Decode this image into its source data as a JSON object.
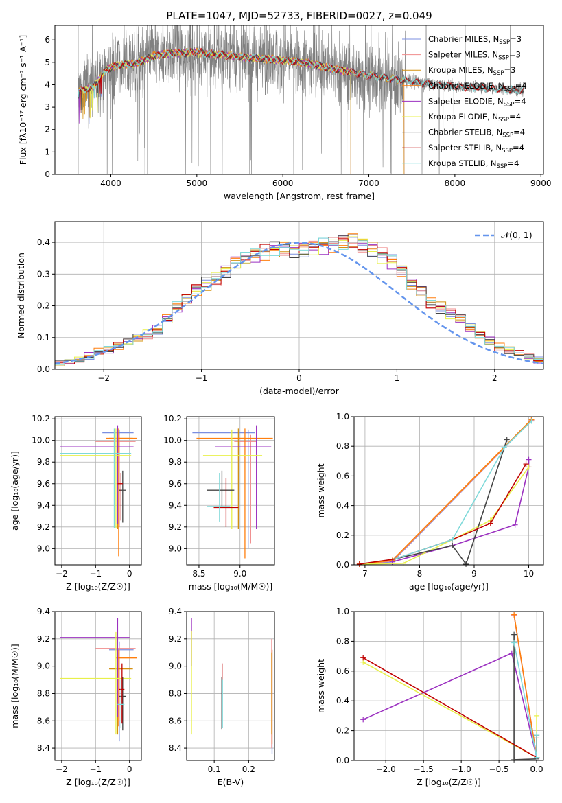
{
  "title": "PLATE=1047, MJD=52733, FIBERID=0027, z=0.049",
  "colors": {
    "chabrier_miles": "#7b8fe0",
    "salpeter_miles": "#f08c8c",
    "kroupa_miles": "#d4900e",
    "chabrier_elodie": "#ff7f0e",
    "salpeter_elodie": "#9b30c0",
    "kroupa_elodie": "#e8f04a",
    "chabrier_stelib": "#444444",
    "salpeter_stelib": "#c00000",
    "kroupa_stelib": "#7ed9d9",
    "grid": "#b0b0b0",
    "normal_curve": "#6495ed",
    "data_gray": "#808080"
  },
  "chart_data": [
    {
      "type": "line",
      "id": "spectrum",
      "xlabel": "wavelength [Angstrom, rest frame]",
      "ylabel": "Flux [fλ10⁻¹⁷ erg cm⁻² s⁻¹ A⁻¹]",
      "xlim": [
        3350,
        9030
      ],
      "ylim": [
        0,
        6.65
      ],
      "xticks": [
        "4000",
        "5000",
        "6000",
        "7000",
        "8000",
        "9000"
      ],
      "yticks": [
        "0",
        "1",
        "2",
        "3",
        "4",
        "5",
        "6"
      ],
      "legend_position": "right",
      "legend": [
        "Chabrier MILES, N_SSP=3",
        "Salpeter MILES, N_SSP=3",
        "Kroupa MILES, N_SSP=3",
        "Chabrier ELODIE, N_SSP=4",
        "Salpeter ELODIE, N_SSP=4",
        "Kroupa ELODIE, N_SSP=4",
        "Chabrier STELIB, N_SSP=4",
        "Salpeter STELIB, N_SSP=4",
        "Kroupa STELIB, N_SSP=4"
      ],
      "continuum": [
        [
          3620,
          3.7
        ],
        [
          3800,
          3.9
        ],
        [
          3950,
          4.7
        ],
        [
          4100,
          4.9
        ],
        [
          4300,
          4.95
        ],
        [
          4500,
          5.3
        ],
        [
          4700,
          5.4
        ],
        [
          5000,
          5.45
        ],
        [
          5200,
          5.35
        ],
        [
          5500,
          5.25
        ],
        [
          5800,
          5.15
        ],
        [
          6000,
          5.1
        ],
        [
          6300,
          4.95
        ],
        [
          6600,
          4.7
        ],
        [
          6900,
          4.5
        ],
        [
          7200,
          4.3
        ],
        [
          7500,
          4.15
        ],
        [
          7800,
          4.0
        ],
        [
          8100,
          3.9
        ],
        [
          8400,
          3.85
        ],
        [
          8700,
          3.75
        ],
        [
          8800,
          3.75
        ]
      ],
      "data_start": 3620,
      "data_end": 8800,
      "model_cutoffs": {
        "miles": 7410,
        "elodie": 6790,
        "stelib": 8800
      }
    },
    {
      "type": "histogram",
      "id": "residuals",
      "xlabel": "(data-model)/error",
      "ylabel": "Normed distribution",
      "xlim": [
        -2.5,
        2.5
      ],
      "ylim": [
        0,
        0.465
      ],
      "xticks": [
        "−2",
        "−1",
        "0",
        "1",
        "2"
      ],
      "yticks": [
        "0.0",
        "0.1",
        "0.2",
        "0.3",
        "0.4"
      ],
      "bin_edges_start": -2.5,
      "bin_width": 0.1,
      "base_values": [
        0.018,
        0.022,
        0.03,
        0.042,
        0.055,
        0.06,
        0.072,
        0.085,
        0.1,
        0.11,
        0.125,
        0.16,
        0.195,
        0.22,
        0.25,
        0.27,
        0.285,
        0.31,
        0.34,
        0.35,
        0.36,
        0.37,
        0.38,
        0.385,
        0.375,
        0.38,
        0.385,
        0.39,
        0.395,
        0.405,
        0.41,
        0.395,
        0.38,
        0.36,
        0.34,
        0.31,
        0.27,
        0.25,
        0.21,
        0.195,
        0.175,
        0.16,
        0.13,
        0.11,
        0.09,
        0.07,
        0.06,
        0.05,
        0.038,
        0.028
      ],
      "legend": [
        "𝒩(0, 1)"
      ],
      "legend_position": "top-right"
    },
    {
      "type": "errorbar",
      "id": "age_vs_Z",
      "xlabel": "Z [log₁₀(Z/Z☉)]",
      "ylabel": "age  [log₁₀(age/yr)]",
      "xlim": [
        -2.2,
        0.35
      ],
      "ylim": [
        8.85,
        10.22
      ],
      "xticks": [
        "−2",
        "−1",
        "0"
      ],
      "yticks": [
        "9.0",
        "9.2",
        "9.4",
        "9.6",
        "9.8",
        "10.0",
        "10.2"
      ],
      "points": [
        {
          "x": -0.3,
          "y": 10.07,
          "xlo": -0.8,
          "xhi": 0.12,
          "ylo": 9.22,
          "yhi": 10.1
        },
        {
          "x": -0.3,
          "y": 9.99,
          "xlo": -1.0,
          "xhi": 0.18,
          "ylo": 9.2,
          "yhi": 10.05
        },
        {
          "x": -0.35,
          "y": 10.02,
          "xlo": -0.6,
          "xhi": 0.1,
          "ylo": 9.18,
          "yhi": 10.1
        },
        {
          "x": -0.32,
          "y": 10.02,
          "xlo": -0.7,
          "xhi": 0.22,
          "ylo": 8.93,
          "yhi": 10.11
        },
        {
          "x": -0.35,
          "y": 9.94,
          "xlo": -2.05,
          "xhi": 0.12,
          "ylo": 9.23,
          "yhi": 10.14
        },
        {
          "x": -0.4,
          "y": 9.86,
          "xlo": -2.05,
          "xhi": 0.05,
          "ylo": 9.19,
          "yhi": 10.11
        },
        {
          "x": -0.2,
          "y": 9.54,
          "xlo": -0.3,
          "xhi": -0.1,
          "ylo": 9.24,
          "yhi": 9.72
        },
        {
          "x": -0.25,
          "y": 9.6,
          "xlo": -0.35,
          "xhi": -0.2,
          "ylo": 9.26,
          "yhi": 9.7
        },
        {
          "x": -0.45,
          "y": 9.88,
          "xlo": -2.05,
          "xhi": 0.05,
          "ylo": 9.19,
          "yhi": 10.11
        }
      ]
    },
    {
      "type": "errorbar",
      "id": "age_vs_mass",
      "xlabel": "mass [log₁₀(M/M☉)]",
      "ylabel": "",
      "xlim": [
        8.35,
        9.42
      ],
      "ylim": [
        8.85,
        10.22
      ],
      "xticks": [
        "8.5",
        "9.0"
      ],
      "yticks": [
        "9.0",
        "9.2",
        "9.4",
        "9.6",
        "9.8",
        "10.0",
        "10.2"
      ],
      "points": [
        {
          "x": 9.1,
          "y": 10.07,
          "xlo": 8.42,
          "xhi": 9.18,
          "ylo": 9.0,
          "yhi": 10.1
        },
        {
          "x": 9.13,
          "y": 9.99,
          "xlo": 8.93,
          "xhi": 9.2,
          "ylo": 9.05,
          "yhi": 10.05
        },
        {
          "x": 8.98,
          "y": 10.02,
          "xlo": 8.92,
          "xhi": 9.05,
          "ylo": 9.18,
          "yhi": 10.11
        },
        {
          "x": 9.06,
          "y": 10.02,
          "xlo": 8.47,
          "xhi": 9.4,
          "ylo": 8.91,
          "yhi": 10.11
        },
        {
          "x": 9.2,
          "y": 9.94,
          "xlo": 8.7,
          "xhi": 9.38,
          "ylo": 9.18,
          "yhi": 10.14
        },
        {
          "x": 8.9,
          "y": 9.86,
          "xlo": 8.55,
          "xhi": 9.27,
          "ylo": 9.18,
          "yhi": 10.1
        },
        {
          "x": 8.78,
          "y": 9.54,
          "xlo": 8.6,
          "xhi": 8.93,
          "ylo": 9.38,
          "yhi": 9.72
        },
        {
          "x": 8.83,
          "y": 9.38,
          "xlo": 8.68,
          "xhi": 8.98,
          "ylo": 9.2,
          "yhi": 9.65
        },
        {
          "x": 8.75,
          "y": 9.39,
          "xlo": 8.6,
          "xhi": 8.88,
          "ylo": 9.25,
          "yhi": 9.7
        }
      ]
    },
    {
      "type": "line",
      "id": "weight_vs_age",
      "xlabel": "age  [log₁₀(age/yr)]",
      "ylabel": "mass weight",
      "xlim": [
        6.8,
        10.27
      ],
      "ylim": [
        0,
        1.0
      ],
      "xticks": [
        "7",
        "8",
        "9",
        "10"
      ],
      "yticks": [
        "0.0",
        "0.2",
        "0.4",
        "0.6",
        "0.8",
        "1.0"
      ],
      "series": [
        {
          "color_key": "chabrier_miles",
          "x": [
            6.9,
            7.5,
            10.05
          ],
          "y": [
            0.005,
            0.02,
            0.975
          ]
        },
        {
          "color_key": "salpeter_miles",
          "x": [
            6.9,
            7.5,
            10.05
          ],
          "y": [
            0.005,
            0.025,
            0.975
          ]
        },
        {
          "color_key": "kroupa_miles",
          "x": [
            6.9,
            7.5,
            10.05
          ],
          "y": [
            0.005,
            0.03,
            0.98
          ]
        },
        {
          "color_key": "chabrier_elodie",
          "x": [
            6.9,
            7.5,
            10.05
          ],
          "y": [
            0.005,
            0.03,
            0.98
          ]
        },
        {
          "color_key": "salpeter_elodie",
          "x": [
            7.5,
            8.6,
            9.75,
            10.0,
            10.0
          ],
          "y": [
            0.02,
            0.13,
            0.27,
            0.66,
            0.71
          ]
        },
        {
          "color_key": "kroupa_elodie",
          "x": [
            6.9,
            7.7,
            8.6,
            9.3,
            10.0
          ],
          "y": [
            0.005,
            0.01,
            0.17,
            0.3,
            0.66
          ]
        },
        {
          "color_key": "chabrier_stelib",
          "x": [
            7.55,
            8.6,
            8.85,
            9.6
          ],
          "y": [
            0.04,
            0.13,
            0.005,
            0.845
          ]
        },
        {
          "color_key": "salpeter_stelib",
          "x": [
            6.9,
            7.55,
            8.6,
            9.3,
            9.95
          ],
          "y": [
            0.005,
            0.04,
            0.17,
            0.28,
            0.68
          ]
        },
        {
          "color_key": "kroupa_stelib",
          "x": [
            7.55,
            8.6,
            9.55,
            10.05
          ],
          "y": [
            0.04,
            0.17,
            0.79,
            0.97
          ]
        }
      ]
    },
    {
      "type": "errorbar",
      "id": "mass_vs_Z",
      "xlabel": "Z [log₁₀(Z/Z☉)]",
      "ylabel": "mass [log₁₀(M/M☉)]",
      "xlim": [
        -2.2,
        0.35
      ],
      "ylim": [
        8.31,
        9.4
      ],
      "xticks": [
        "−2",
        "−1",
        "0"
      ],
      "yticks": [
        "8.4",
        "8.6",
        "8.8",
        "9.0",
        "9.2",
        "9.4"
      ],
      "points": [
        {
          "x": -0.3,
          "y": 9.12,
          "xlo": -0.6,
          "xhi": 0.12,
          "ylo": 8.45,
          "yhi": 9.18
        },
        {
          "x": -0.3,
          "y": 9.13,
          "xlo": -1.0,
          "xhi": 0.18,
          "ylo": 8.6,
          "yhi": 9.15
        },
        {
          "x": -0.35,
          "y": 8.98,
          "xlo": -0.6,
          "xhi": 0.1,
          "ylo": 8.5,
          "yhi": 9.1
        },
        {
          "x": -0.32,
          "y": 9.06,
          "xlo": -0.4,
          "xhi": 0.22,
          "ylo": 8.56,
          "yhi": 9.12
        },
        {
          "x": -0.35,
          "y": 9.21,
          "xlo": -2.05,
          "xhi": 0.0,
          "ylo": 8.63,
          "yhi": 9.35
        },
        {
          "x": -0.4,
          "y": 8.91,
          "xlo": -2.05,
          "xhi": 0.05,
          "ylo": 8.5,
          "yhi": 9.25
        },
        {
          "x": -0.2,
          "y": 8.78,
          "xlo": -0.3,
          "xhi": -0.1,
          "ylo": 8.53,
          "yhi": 8.92
        },
        {
          "x": -0.22,
          "y": 8.83,
          "xlo": -0.3,
          "xhi": -0.15,
          "ylo": 8.58,
          "yhi": 9.02
        },
        {
          "x": -0.25,
          "y": 8.72,
          "xlo": -0.35,
          "xhi": -0.15,
          "ylo": 8.55,
          "yhi": 8.9
        }
      ]
    },
    {
      "type": "errorbar",
      "id": "mass_vs_ebv",
      "xlabel": "E(B-V)",
      "ylabel": "",
      "xlim": [
        0.02,
        0.275
      ],
      "ylim": [
        8.31,
        9.4
      ],
      "xticks": [
        "0.1",
        "0.2"
      ],
      "yticks": [
        "8.4",
        "8.6",
        "8.8",
        "9.0",
        "9.2",
        "9.4"
      ],
      "points": [
        {
          "x": 0.268,
          "y": 8.6,
          "ylo": 8.36,
          "yhi": 9.12
        },
        {
          "x": 0.267,
          "y": 8.7,
          "ylo": 8.4,
          "yhi": 9.2
        },
        {
          "x": 0.267,
          "y": 8.75,
          "ylo": 8.5,
          "yhi": 9.1
        },
        {
          "x": 0.268,
          "y": 8.9,
          "ylo": 8.43,
          "yhi": 9.12
        },
        {
          "x": 0.034,
          "y": 9.21,
          "ylo": 9.0,
          "yhi": 9.35
        },
        {
          "x": 0.034,
          "y": 8.91,
          "ylo": 8.5,
          "yhi": 9.26
        },
        {
          "x": 0.122,
          "y": 8.78,
          "ylo": 8.54,
          "yhi": 8.92
        },
        {
          "x": 0.123,
          "y": 8.83,
          "ylo": 8.58,
          "yhi": 9.02
        },
        {
          "x": 0.124,
          "y": 8.72,
          "ylo": 8.55,
          "yhi": 8.9
        }
      ]
    },
    {
      "type": "line",
      "id": "weight_vs_Z",
      "xlabel": "Z [log₁₀(Z/Z☉)]",
      "ylabel": "mass weight",
      "xlim": [
        -2.42,
        0.09
      ],
      "ylim": [
        0,
        1.0
      ],
      "xticks": [
        "−2.0",
        "−1.5",
        "−1.0",
        "−0.5",
        "0.0"
      ],
      "yticks": [
        "0.0",
        "0.2",
        "0.4",
        "0.6",
        "0.8",
        "1.0"
      ],
      "series": [
        {
          "color_key": "chabrier_miles",
          "x": [
            -0.3,
            0.0
          ],
          "y": [
            0.975,
            0.02
          ]
        },
        {
          "color_key": "salpeter_miles",
          "x": [
            -0.3,
            0.0
          ],
          "y": [
            0.975,
            0.02
          ]
        },
        {
          "color_key": "chabrier_elodie",
          "x": [
            -0.3,
            0.0
          ],
          "y": [
            0.98,
            0.02
          ]
        },
        {
          "color_key": "salpeter_elodie",
          "x": [
            -2.3,
            -0.33,
            0.0
          ],
          "y": [
            0.275,
            0.72,
            0.02
          ]
        },
        {
          "color_key": "kroupa_elodie",
          "x": [
            -2.3,
            0.0,
            0.0
          ],
          "y": [
            0.66,
            0.02,
            0.3
          ]
        },
        {
          "color_key": "chabrier_stelib",
          "x": [
            -0.3,
            -0.3,
            0.0,
            0.0
          ],
          "y": [
            0.845,
            0.005,
            0.01,
            0.17
          ]
        },
        {
          "color_key": "salpeter_stelib",
          "x": [
            -2.3,
            0.0,
            0.0
          ],
          "y": [
            0.69,
            0.02,
            0.15
          ]
        },
        {
          "color_key": "kroupa_stelib",
          "x": [
            -0.3,
            0.0,
            0.0
          ],
          "y": [
            0.79,
            0.02,
            0.17
          ]
        }
      ]
    }
  ]
}
